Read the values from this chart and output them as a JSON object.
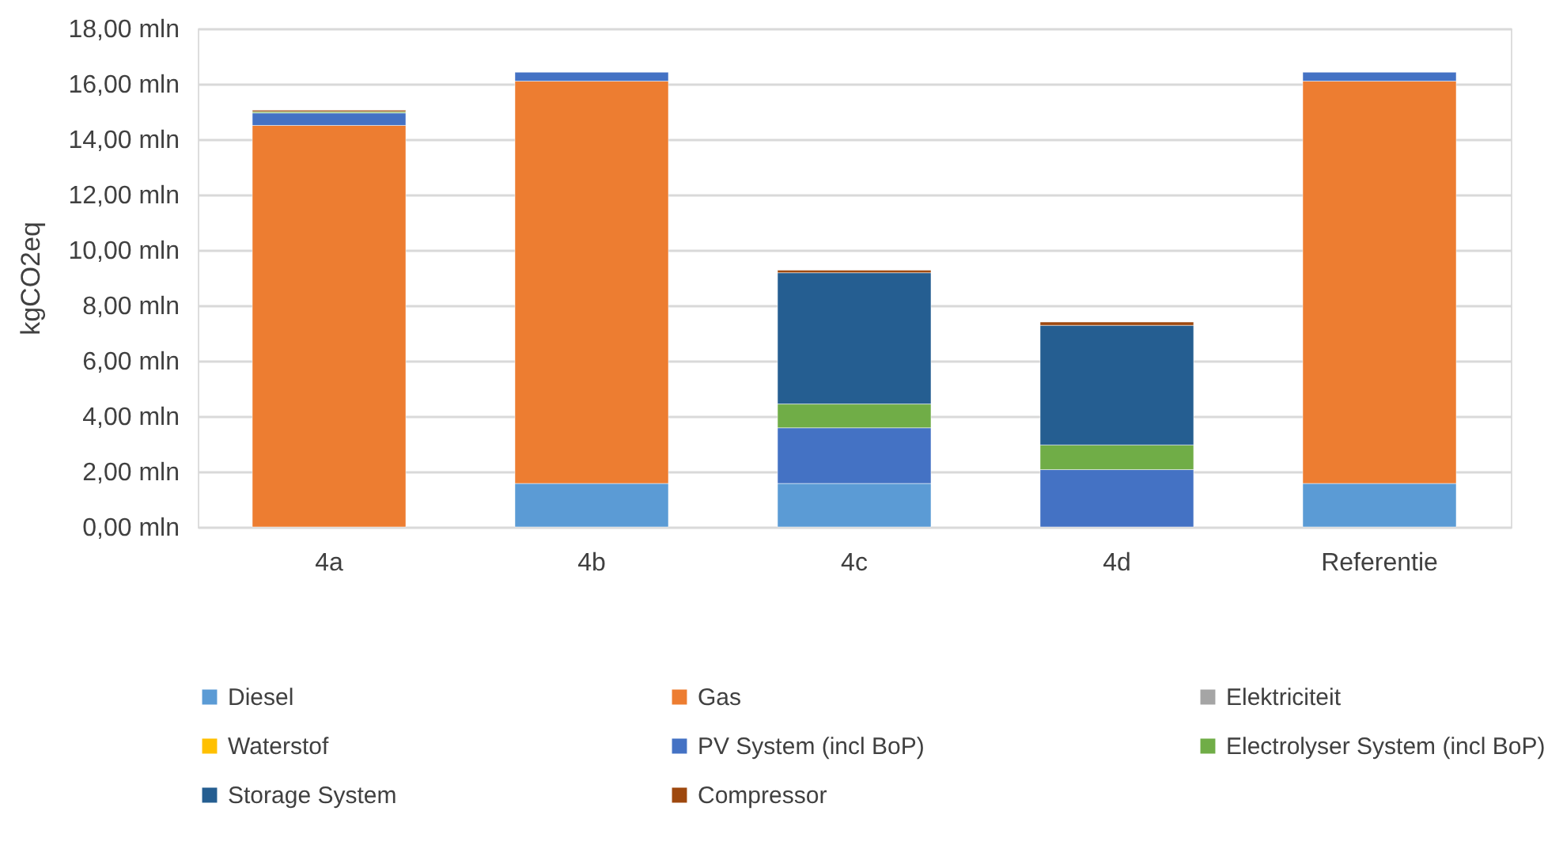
{
  "chart_data": {
    "type": "bar",
    "stacked": true,
    "ylabel": "kgCO2eq",
    "categories": [
      "4a",
      "4b",
      "4c",
      "4d",
      "Referentie"
    ],
    "series": [
      {
        "name": "Diesel",
        "color": "#5b9bd5",
        "values": [
          null,
          1.57,
          1.57,
          null,
          1.57
        ]
      },
      {
        "name": "Gas",
        "color": "#ed7d31",
        "values": [
          14.5,
          14.53,
          null,
          null,
          14.53
        ]
      },
      {
        "name": "Elektriciteit",
        "color": "#a5a5a5",
        "values": [
          null,
          null,
          null,
          null,
          null
        ]
      },
      {
        "name": "Waterstof",
        "color": "#ffc000",
        "values": [
          null,
          null,
          null,
          null,
          null
        ]
      },
      {
        "name": "PV System (incl BoP)",
        "color": "#4472c4",
        "values": [
          0.45,
          0.32,
          2.01,
          2.07,
          0.32
        ]
      },
      {
        "name": "Electrolyser System (incl BoP)",
        "color": "#70ad47",
        "values": [
          0.05,
          null,
          0.86,
          0.89,
          null
        ]
      },
      {
        "name": "Storage System",
        "color": "#255e91",
        "values": [
          null,
          null,
          4.74,
          4.32,
          null
        ]
      },
      {
        "name": "Compressor",
        "color": "#9e480e",
        "values": [
          0.05,
          null,
          0.09,
          0.12,
          null
        ]
      }
    ],
    "ylim": [
      0,
      18
    ],
    "yticks": [
      {
        "value": 0,
        "label": "0,00 mln"
      },
      {
        "value": 2,
        "label": "2,00 mln"
      },
      {
        "value": 4,
        "label": "4,00 mln"
      },
      {
        "value": 6,
        "label": "6,00 mln"
      },
      {
        "value": 8,
        "label": "8,00 mln"
      },
      {
        "value": 10,
        "label": "10,00 mln"
      },
      {
        "value": 12,
        "label": "12,00 mln"
      },
      {
        "value": 14,
        "label": "14,00 mln"
      },
      {
        "value": 16,
        "label": "16,00 mln"
      },
      {
        "value": 18,
        "label": "18,00 mln"
      }
    ],
    "grid": "y",
    "legend": "bottom"
  }
}
